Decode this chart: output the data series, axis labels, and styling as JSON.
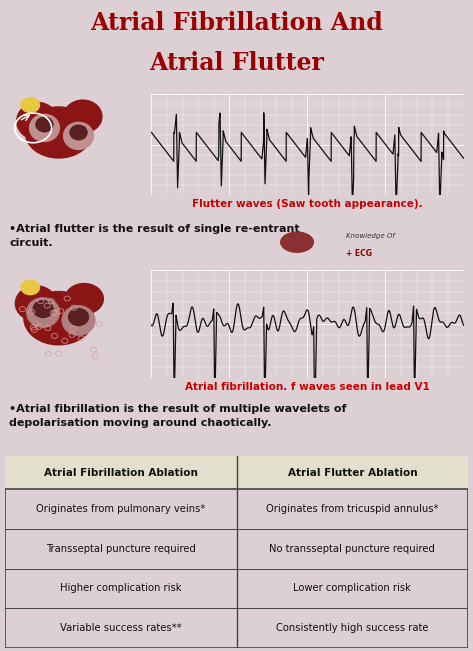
{
  "title_line1": "Atrial Fibrillation And",
  "title_line2": "Atrial Flutter",
  "title_color": "#9B0000",
  "bg_color": "#ddd0d5",
  "flutter_caption": "Flutter waves (Saw tooth appearance).",
  "flutter_caption_color": "#cc0000",
  "flutter_note": "•Atrial flutter is the result of single re-entrant\ncircuit.",
  "fibril_caption": "Atrial fibrillation. f waves seen in lead V1",
  "fibril_caption_color": "#cc0000",
  "fibril_note": "•Atrial fibrillation is the result of multiple wavelets of\ndepolarisation moving around chaotically.",
  "table_header_left": "Atrial Fibrillation Ablation",
  "table_header_right": "Atrial Flutter Ablation",
  "table_rows": [
    [
      "Originates from pulmonary veins*",
      "Originates from tricuspid annulus*"
    ],
    [
      "Transseptal puncture required",
      "No transseptal puncture required"
    ],
    [
      "Higher complication risk",
      "Lower complication risk"
    ],
    [
      "Variable success rates**",
      "Consistently high success rate"
    ]
  ],
  "ecg_grid_color": "#b8dede",
  "ecg_line_color": "#111111",
  "table_bg": "#f0efe0",
  "table_border": "#444444",
  "note_color": "#111111",
  "logo_text1": "Knowledge Of",
  "logo_text2": "+ ECG"
}
